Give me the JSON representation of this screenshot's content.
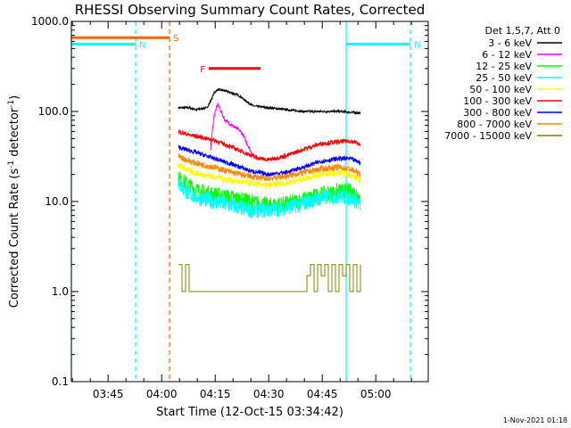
{
  "chart_data": {
    "type": "line",
    "title": "RHESSI Observing Summary Count Rates, Corrected",
    "xlabel": "Start Time (12-Oct-15 03:34:42)",
    "ylabel_parts": [
      "Corrected Count Rate (s",
      "-1",
      " detector",
      "-1",
      ")"
    ],
    "y_scale": "log",
    "ylim": [
      0.1,
      1000
    ],
    "y_ticks": [
      {
        "value": 1000,
        "label": "1000.0"
      },
      {
        "value": 100,
        "label": "100.0"
      },
      {
        "value": 10,
        "label": "10.0"
      },
      {
        "value": 1,
        "label": "1.0"
      },
      {
        "value": 0.1,
        "label": "0.1"
      }
    ],
    "x_range_minutes": [
      0,
      100
    ],
    "x_ticks": [
      {
        "minute": 10.3,
        "label": "03:45"
      },
      {
        "minute": 25.3,
        "label": "04:00"
      },
      {
        "minute": 40.3,
        "label": "04:15"
      },
      {
        "minute": 55.3,
        "label": "04:30"
      },
      {
        "minute": 70.3,
        "label": "04:45"
      },
      {
        "minute": 85.3,
        "label": "05:00"
      }
    ],
    "legend_header": "Det 1,5,7, Att 0",
    "legend_placement": "right",
    "series": [
      {
        "name": "3 - 6 keV",
        "color": "#000000",
        "noise": 0.012,
        "points": [
          [
            30,
            110
          ],
          [
            33,
            110
          ],
          [
            35,
            105
          ],
          [
            38,
            110
          ],
          [
            39,
            130
          ],
          [
            40,
            160
          ],
          [
            41,
            175
          ],
          [
            43,
            170
          ],
          [
            45,
            160
          ],
          [
            47,
            150
          ],
          [
            49,
            130
          ],
          [
            51,
            115
          ],
          [
            55,
            110
          ],
          [
            60,
            105
          ],
          [
            65,
            100
          ],
          [
            70,
            100
          ],
          [
            75,
            100
          ],
          [
            80,
            97
          ],
          [
            81,
            95
          ]
        ]
      },
      {
        "name": "6 - 12 keV",
        "color": "#ff00ff",
        "noise": 0.02,
        "points": [
          [
            39,
            38
          ],
          [
            39.5,
            60
          ],
          [
            40,
            90
          ],
          [
            41,
            120
          ],
          [
            42,
            100
          ],
          [
            43,
            80
          ],
          [
            44,
            75
          ],
          [
            45,
            70
          ],
          [
            46,
            66
          ],
          [
            47,
            62
          ],
          [
            48,
            56
          ],
          [
            49,
            46
          ],
          [
            50,
            38
          ],
          [
            51,
            32
          ],
          [
            52,
            30
          ]
        ]
      },
      {
        "name": "12 - 25 keV",
        "color": "#00ff00",
        "noise": 0.09,
        "points": [
          [
            30,
            18
          ],
          [
            33,
            15
          ],
          [
            36,
            13
          ],
          [
            40,
            12
          ],
          [
            45,
            11
          ],
          [
            50,
            10
          ],
          [
            55,
            9
          ],
          [
            60,
            9.5
          ],
          [
            65,
            10.5
          ],
          [
            70,
            12
          ],
          [
            75,
            13
          ],
          [
            78,
            13
          ],
          [
            80,
            12
          ],
          [
            81,
            11
          ]
        ]
      },
      {
        "name": "25 - 50 keV",
        "color": "#00ffff",
        "noise": 0.09,
        "points": [
          [
            30,
            16
          ],
          [
            33,
            12
          ],
          [
            36,
            11
          ],
          [
            40,
            10
          ],
          [
            45,
            9
          ],
          [
            50,
            8
          ],
          [
            55,
            8
          ],
          [
            60,
            8.5
          ],
          [
            65,
            9.5
          ],
          [
            70,
            11
          ],
          [
            75,
            11.5
          ],
          [
            78,
            11
          ],
          [
            80,
            10
          ],
          [
            81,
            9
          ]
        ]
      },
      {
        "name": "50 - 100 keV",
        "color": "#ffff00",
        "noise": 0.035,
        "points": [
          [
            30,
            25
          ],
          [
            33,
            22
          ],
          [
            36,
            20
          ],
          [
            40,
            19
          ],
          [
            45,
            17
          ],
          [
            50,
            16
          ],
          [
            55,
            15
          ],
          [
            60,
            16
          ],
          [
            65,
            18
          ],
          [
            70,
            20
          ],
          [
            75,
            21
          ],
          [
            78,
            20
          ],
          [
            80,
            18
          ],
          [
            81,
            17
          ]
        ]
      },
      {
        "name": "100 - 300 keV",
        "color": "#ff0000",
        "noise": 0.025,
        "points": [
          [
            30,
            60
          ],
          [
            33,
            55
          ],
          [
            36,
            52
          ],
          [
            40,
            48
          ],
          [
            45,
            40
          ],
          [
            50,
            33
          ],
          [
            53,
            30
          ],
          [
            55,
            29
          ],
          [
            60,
            32
          ],
          [
            65,
            38
          ],
          [
            70,
            44
          ],
          [
            75,
            46
          ],
          [
            78,
            47
          ],
          [
            80,
            45
          ],
          [
            81,
            42
          ]
        ]
      },
      {
        "name": "300 - 800 keV",
        "color": "#0000ff",
        "noise": 0.025,
        "points": [
          [
            30,
            40
          ],
          [
            33,
            37
          ],
          [
            36,
            34
          ],
          [
            40,
            30
          ],
          [
            45,
            26
          ],
          [
            50,
            22
          ],
          [
            55,
            20
          ],
          [
            60,
            21
          ],
          [
            65,
            24
          ],
          [
            70,
            28
          ],
          [
            75,
            30
          ],
          [
            78,
            30
          ],
          [
            80,
            28
          ],
          [
            81,
            27
          ]
        ]
      },
      {
        "name": "800 - 7000 keV",
        "color": "#ff8800",
        "noise": 0.035,
        "points": [
          [
            30,
            32
          ],
          [
            33,
            28
          ],
          [
            36,
            26
          ],
          [
            40,
            24
          ],
          [
            45,
            21
          ],
          [
            50,
            19
          ],
          [
            55,
            18
          ],
          [
            60,
            19
          ],
          [
            65,
            21
          ],
          [
            70,
            23
          ],
          [
            75,
            24
          ],
          [
            78,
            23
          ],
          [
            80,
            21
          ],
          [
            81,
            20
          ]
        ]
      },
      {
        "name": "7000 - 15000 keV",
        "color": "#808000",
        "noise": 0,
        "points": [
          [
            30,
            2
          ],
          [
            31,
            1
          ],
          [
            32,
            2
          ],
          [
            33,
            1
          ],
          [
            34,
            1
          ],
          [
            35,
            1
          ],
          [
            40,
            1
          ],
          [
            45,
            1
          ],
          [
            50,
            1
          ],
          [
            55,
            1
          ],
          [
            60,
            1
          ],
          [
            65,
            1
          ],
          [
            66,
            1.5
          ],
          [
            67,
            2
          ],
          [
            68,
            1
          ],
          [
            69,
            2
          ],
          [
            70,
            1.5
          ],
          [
            71,
            2
          ],
          [
            72,
            1
          ],
          [
            73,
            2
          ],
          [
            74,
            1
          ],
          [
            75,
            2
          ],
          [
            76,
            1.5
          ],
          [
            77,
            2
          ],
          [
            78,
            1
          ],
          [
            79,
            2
          ],
          [
            80,
            1
          ],
          [
            81,
            2
          ]
        ]
      }
    ],
    "state_bars": [
      {
        "label": "S",
        "color": "#ff6600",
        "start": 0,
        "end": 27.5,
        "level": 660
      },
      {
        "label": "N",
        "color": "#00ffff",
        "start": 0,
        "end": 18,
        "level": 560
      },
      {
        "label": "N",
        "color": "#00ffff",
        "start": 77,
        "end": 95,
        "level": 560
      },
      {
        "label": "F",
        "color": "#ff0000",
        "start": 38.5,
        "end": 53,
        "level": 300
      }
    ],
    "state_labels": [
      "S",
      "N",
      "F"
    ],
    "vertical_lines": [
      {
        "minute": 0,
        "color": "#00ffff",
        "style": "solid"
      },
      {
        "minute": 18,
        "color": "#00ffff",
        "style": "dashed"
      },
      {
        "minute": 27.5,
        "color": "#ff6600",
        "style": "dashed"
      },
      {
        "minute": 77,
        "color": "#00ffff",
        "style": "solid"
      },
      {
        "minute": 95,
        "color": "#00ffff",
        "style": "dashed"
      }
    ],
    "footer": "1-Nov-2021 01:18"
  }
}
